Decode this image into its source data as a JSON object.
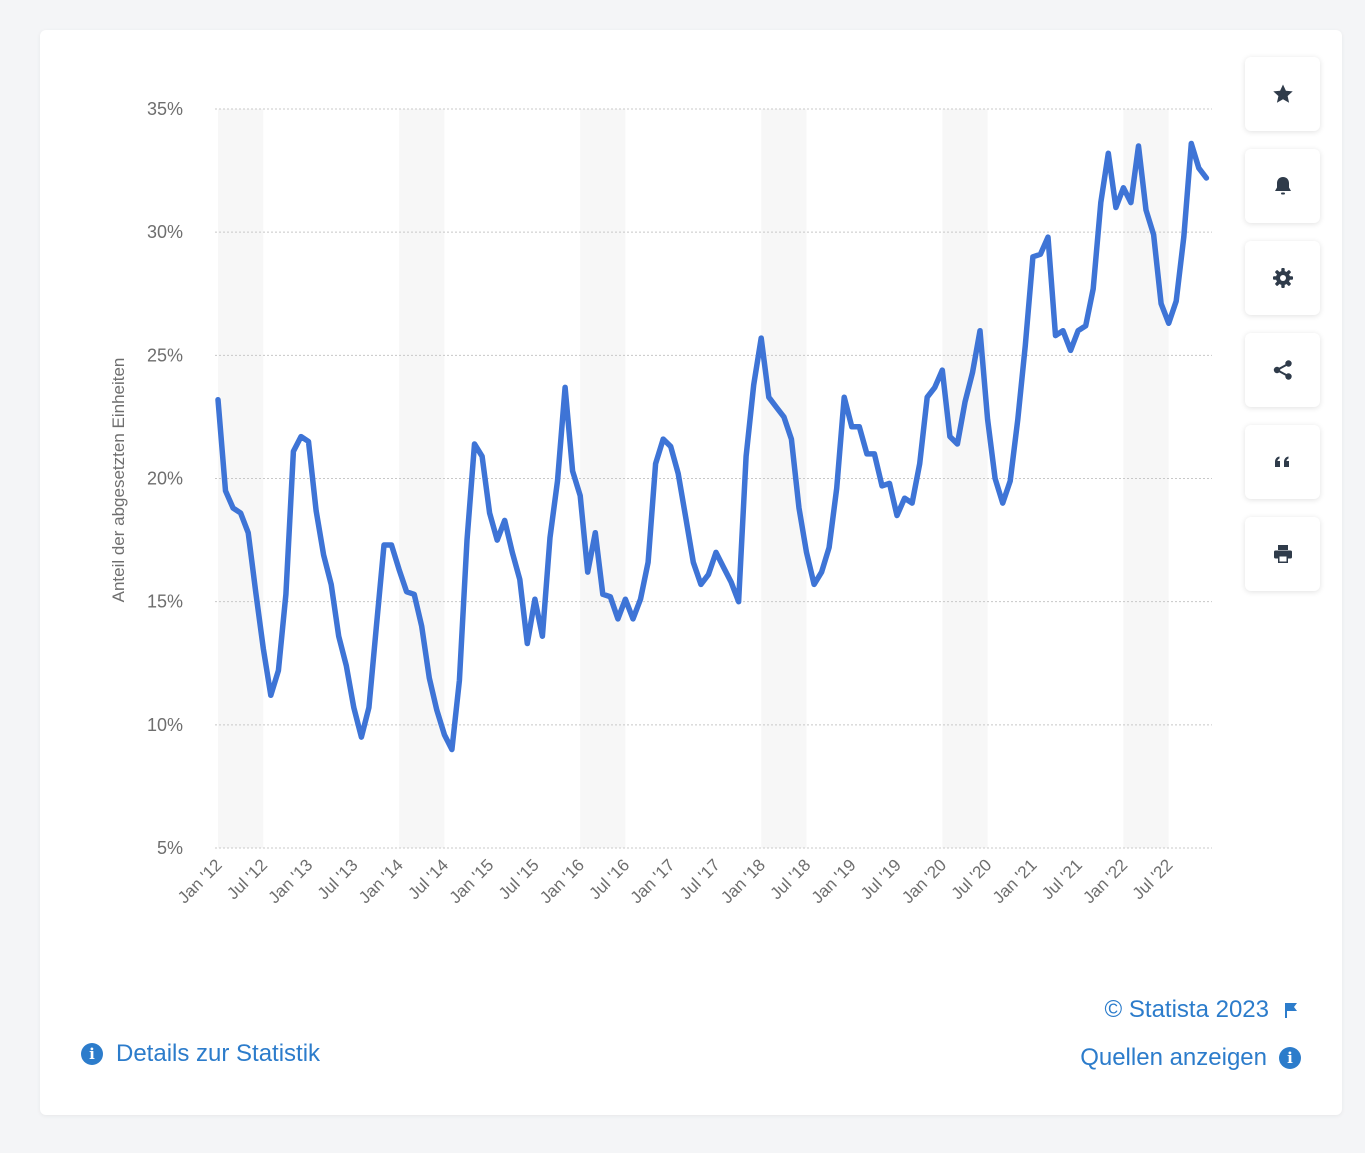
{
  "toolbar": {
    "buttons": [
      {
        "name": "favorite-button",
        "icon": "star-icon"
      },
      {
        "name": "notification-button",
        "icon": "bell-icon"
      },
      {
        "name": "settings-button",
        "icon": "gear-icon"
      },
      {
        "name": "share-button",
        "icon": "share-icon"
      },
      {
        "name": "cite-button",
        "icon": "quote-icon"
      },
      {
        "name": "print-button",
        "icon": "printer-icon"
      }
    ]
  },
  "footer": {
    "details_label": "Details zur Statistik",
    "copyright": "© Statista 2023",
    "sources_label": "Quellen anzeigen"
  },
  "colors": {
    "line": "#3e74d6",
    "link": "#2c7ccb",
    "grid": "#c8c8c8",
    "band": "#f7f7f7",
    "axis_text": "#6e6e6e"
  },
  "chart_data": {
    "type": "line",
    "title": "",
    "xlabel": "",
    "ylabel": "Anteil der abgesetzten Einheiten",
    "ylim": [
      5,
      35
    ],
    "yticks": [
      5,
      10,
      15,
      20,
      25,
      30,
      35
    ],
    "ytick_labels": [
      "5%",
      "10%",
      "15%",
      "20%",
      "25%",
      "30%",
      "35%"
    ],
    "grid": true,
    "x_tick_labels": [
      "Jan '12",
      "Jul '12",
      "Jan '13",
      "Jul '13",
      "Jan '14",
      "Jul '14",
      "Jan '15",
      "Jul '15",
      "Jan '16",
      "Jul '16",
      "Jan '17",
      "Jul '17",
      "Jan '18",
      "Jul '18",
      "Jan '19",
      "Jul '19",
      "Jan '20",
      "Jul '20",
      "Jan '21",
      "Jul '21",
      "Jan '22",
      "Jul '22"
    ],
    "x_tick_month_index": [
      0,
      6,
      12,
      18,
      24,
      30,
      36,
      42,
      48,
      54,
      60,
      66,
      72,
      78,
      84,
      90,
      96,
      102,
      108,
      114,
      120,
      126
    ],
    "series": [
      {
        "name": "Anteil",
        "start": "Jan '12",
        "interval": "month",
        "values": [
          23.2,
          19.5,
          18.8,
          18.6,
          17.8,
          15.4,
          13.1,
          11.2,
          12.2,
          15.3,
          21.1,
          21.7,
          21.5,
          18.7,
          16.9,
          15.7,
          13.6,
          12.4,
          10.7,
          9.5,
          10.7,
          14.0,
          17.3,
          17.3,
          16.3,
          15.4,
          15.3,
          14.0,
          11.9,
          10.6,
          9.6,
          9.0,
          11.8,
          17.5,
          21.4,
          20.9,
          18.6,
          17.5,
          18.3,
          17.0,
          15.9,
          13.3,
          15.1,
          13.6,
          17.6,
          19.9,
          23.7,
          20.3,
          19.3,
          16.2,
          17.8,
          15.3,
          15.2,
          14.3,
          15.1,
          14.3,
          15.1,
          16.6,
          20.6,
          21.6,
          21.3,
          20.2,
          18.4,
          16.6,
          15.7,
          16.1,
          17.0,
          16.4,
          15.8,
          15.0,
          20.9,
          23.8,
          25.7,
          23.3,
          22.9,
          22.5,
          21.6,
          18.8,
          17.0,
          15.7,
          16.2,
          17.2,
          19.6,
          23.3,
          22.1,
          22.1,
          21.0,
          21.0,
          19.7,
          19.8,
          18.5,
          19.2,
          19.0,
          20.6,
          23.3,
          23.7,
          24.4,
          21.7,
          21.4,
          23.1,
          24.3,
          26.0,
          22.4,
          20.0,
          19.0,
          19.9,
          22.4,
          25.4,
          29.0,
          29.1,
          29.8,
          25.8,
          26.0,
          25.2,
          26.0,
          26.2,
          27.7,
          31.2,
          33.2,
          31.0,
          31.8,
          31.2,
          33.5,
          30.9,
          29.9,
          27.1,
          26.3,
          27.2,
          29.8,
          33.6,
          32.6,
          32.2
        ]
      }
    ]
  }
}
